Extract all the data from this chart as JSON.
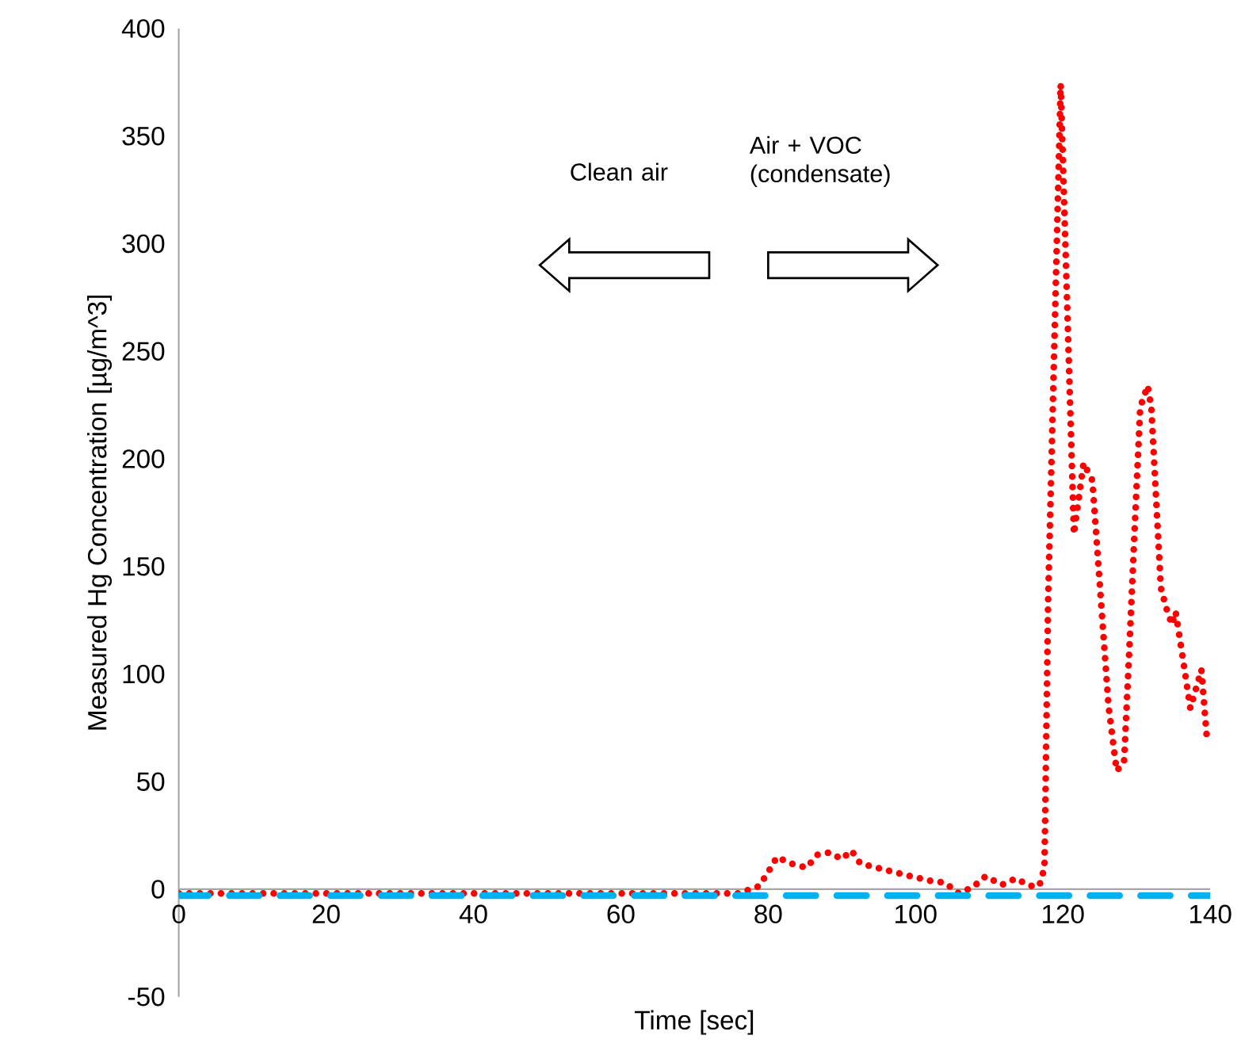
{
  "chart_data": {
    "type": "line",
    "xlabel": "Time [sec]",
    "ylabel": "Measured Hg Concentration [µg/m^3]",
    "xlim": [
      0,
      140
    ],
    "ylim": [
      -50,
      400
    ],
    "xticks": [
      0,
      20,
      40,
      60,
      80,
      100,
      120,
      140
    ],
    "yticks": [
      -50,
      0,
      50,
      100,
      150,
      200,
      250,
      300,
      350,
      400
    ],
    "grid": false,
    "marker": "none",
    "annotations": [
      "Clean air",
      "Air + VOC (condensate)"
    ],
    "series": [
      {
        "color": "#ff0000",
        "line_style": "dotted",
        "x": [
          0,
          10,
          20,
          30,
          40,
          50,
          60,
          70,
          76,
          78.8,
          80,
          81.2,
          83,
          85.2,
          86.7,
          88.3,
          90,
          91.3,
          92.5,
          94.7,
          97,
          99.4,
          101.8,
          104,
          105.9,
          107.8,
          109.5,
          111.7,
          113.6,
          115.5,
          116.8,
          117.5,
          118,
          119.7,
          121.5,
          122.8,
          124,
          125,
          126.2,
          127.3,
          128.3,
          129,
          129.8,
          130.5,
          131.5,
          132,
          132.6,
          133.3,
          134,
          134.8,
          135.3,
          136.3,
          137.3,
          138.8,
          139.5,
          140
        ],
        "values": [
          -2,
          -2,
          -2,
          -2,
          -2,
          -2,
          -2,
          -2,
          -2,
          1.5,
          8,
          15,
          12,
          10,
          16,
          17,
          14,
          18,
          12,
          10,
          8,
          6,
          4,
          3,
          -2,
          1,
          6,
          2,
          5,
          1.5,
          1.5,
          10,
          135,
          374,
          165,
          198,
          190,
          142,
          85,
          55,
          59,
          110,
          172,
          224,
          234,
          224,
          185,
          140,
          131,
          123,
          129,
          107,
          84,
          102,
          72,
          68
        ]
      },
      {
        "color": "#00b0f0",
        "line_style": "dashed",
        "x": [
          0,
          140
        ],
        "values": [
          -3,
          -3
        ]
      }
    ]
  }
}
